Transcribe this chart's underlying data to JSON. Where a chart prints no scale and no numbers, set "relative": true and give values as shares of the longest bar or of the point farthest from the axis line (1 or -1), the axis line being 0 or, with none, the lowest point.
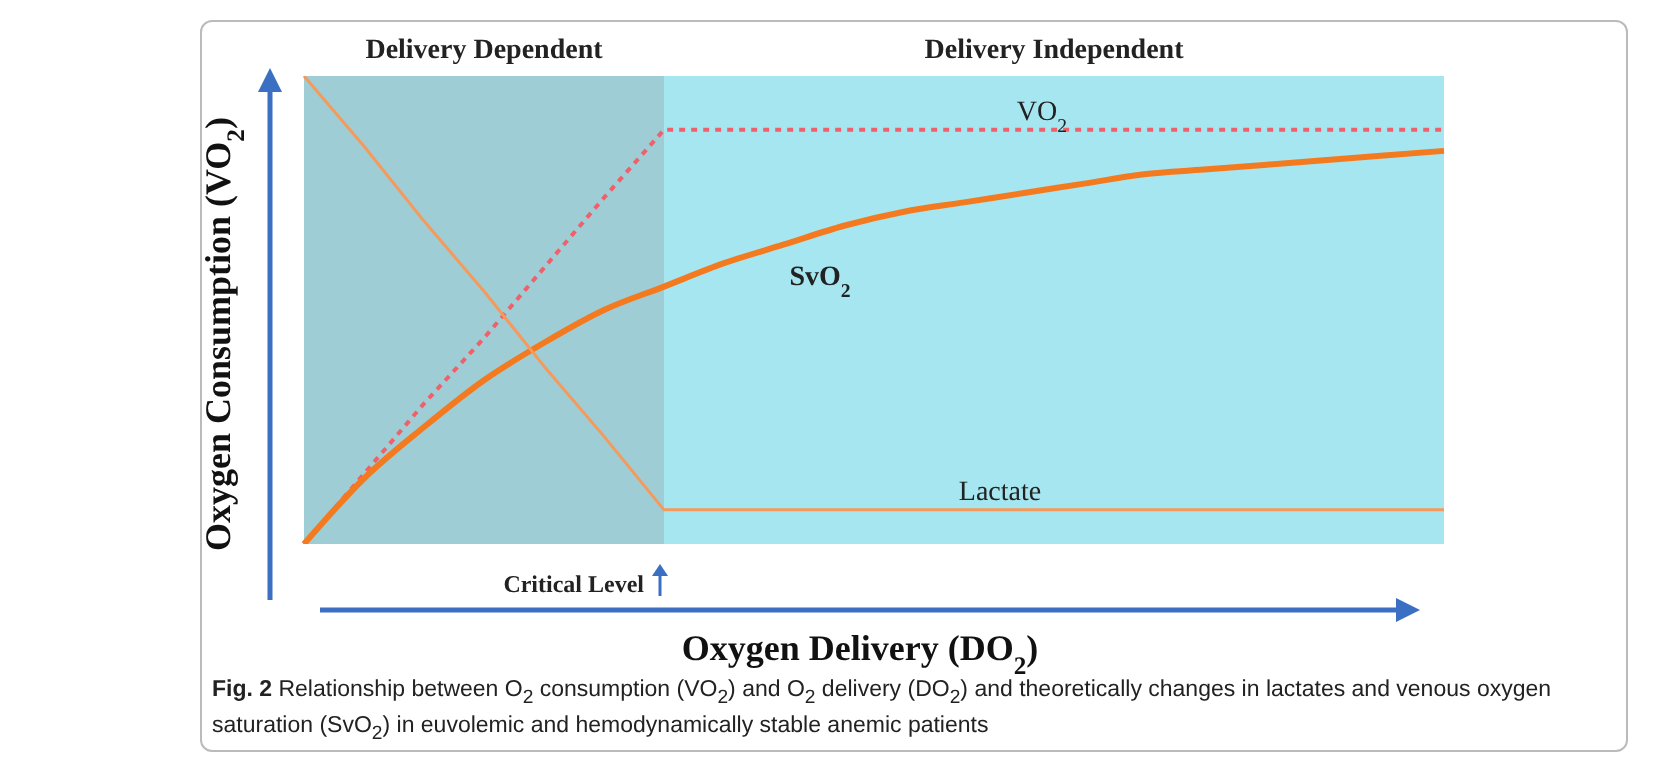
{
  "chart_data": {
    "type": "line",
    "relative": true,
    "xlabel": "Oxygen Delivery (DO$_{2}$)",
    "ylabel": "Oxygen Consumption (VO$_{2}$)",
    "categories": [
      null,
      null,
      null,
      null,
      null,
      null,
      null,
      null,
      null,
      null,
      null,
      null,
      null,
      null,
      null,
      null,
      null,
      null,
      null,
      null
    ],
    "series": [
      {
        "name": "VO$_{2}$",
        "color": "#f0606a",
        "line_style": "dotted",
        "values": [
          0,
          0.15,
          0.3,
          0.44,
          0.59,
          0.74,
          0.885,
          0.885,
          0.885,
          0.885,
          0.885,
          0.885,
          0.885,
          0.885,
          0.885,
          0.885,
          0.885,
          0.885,
          0.885,
          0.885
        ]
      },
      {
        "name": "SvO$_{2}$",
        "color": "#f47a20",
        "values": [
          0,
          0.14,
          0.25,
          0.35,
          0.43,
          0.5,
          0.55,
          0.6,
          0.64,
          0.68,
          0.71,
          0.73,
          0.75,
          0.77,
          0.79,
          0.8,
          0.81,
          0.82,
          0.83,
          0.84
        ]
      },
      {
        "name": "Lactate",
        "color": "#f59a5a",
        "values": [
          1,
          0.85,
          0.69,
          0.54,
          0.38,
          0.23,
          0.073,
          0.073,
          0.073,
          0.073,
          0.073,
          0.073,
          0.073,
          0.073,
          0.073,
          0.073,
          0.073,
          0.073,
          0.073,
          0.073
        ]
      }
    ],
    "legend": false,
    "grid": false,
    "annotations": [
      "Delivery Dependent",
      "Delivery Independent",
      "Critical Level",
      "Fig. 2 Relationship between O$_{2}$ consumption (VO$_{2}$) and O$_{2}$ delivery (DO$_{2}$) and theoretically changes in lactates and venous oxygen saturation (SvO$_{2}$) in euvolemic and hemodynamically stable anemic patients"
    ]
  }
}
